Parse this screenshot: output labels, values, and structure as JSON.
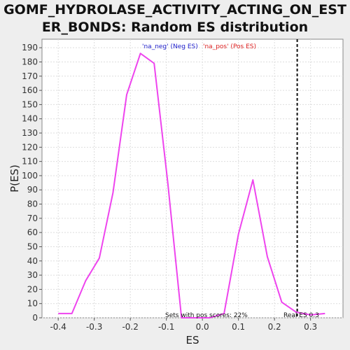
{
  "chart_data": {
    "type": "line",
    "title_line1": "GOMF_HYDROLASE_ACTIVITY_ACTING_ON_EST",
    "title_line2": "ER_BONDS: Random ES distribution",
    "xlabel": "ES",
    "ylabel": "P(ES)",
    "xlim": [
      -0.445,
      0.39
    ],
    "ylim": [
      0,
      196
    ],
    "x_ticks": [
      -0.4,
      -0.3,
      -0.2,
      -0.1,
      0.0,
      0.1,
      0.2,
      0.3
    ],
    "x_tick_labels": [
      "-0.4",
      "-0.3",
      "-0.2",
      "-0.1",
      "0.0",
      "0.1",
      "0.2",
      "0.3"
    ],
    "y_ticks": [
      0,
      10,
      20,
      30,
      40,
      50,
      60,
      70,
      80,
      90,
      100,
      110,
      120,
      130,
      140,
      150,
      160,
      170,
      180,
      190
    ],
    "grid": true,
    "series": [
      {
        "color": "#ee44ee",
        "x": [
          -0.4,
          -0.362,
          -0.324,
          -0.286,
          -0.248,
          -0.21,
          -0.172,
          -0.134,
          -0.096,
          -0.058,
          -0.02,
          0.02,
          0.06,
          0.1,
          0.14,
          0.18,
          0.22,
          0.26,
          0.3,
          0.34
        ],
        "y": [
          3,
          3,
          26,
          42,
          88,
          157,
          186,
          179,
          95,
          0,
          0,
          0,
          3,
          59,
          97,
          43,
          11,
          4,
          2,
          3
        ]
      }
    ],
    "real_es": 0.263,
    "legend": {
      "neg_label": "'na_neg' (Neg ES)",
      "pos_label": "'na_pos' (Pos ES)",
      "neg_color": "#2222cc",
      "pos_color": "#dd2222",
      "placement": "top-center"
    },
    "annotations": {
      "pos_scores": "Sets with pos scores: 22%",
      "real_es_label": "Real ES 0.3"
    }
  }
}
